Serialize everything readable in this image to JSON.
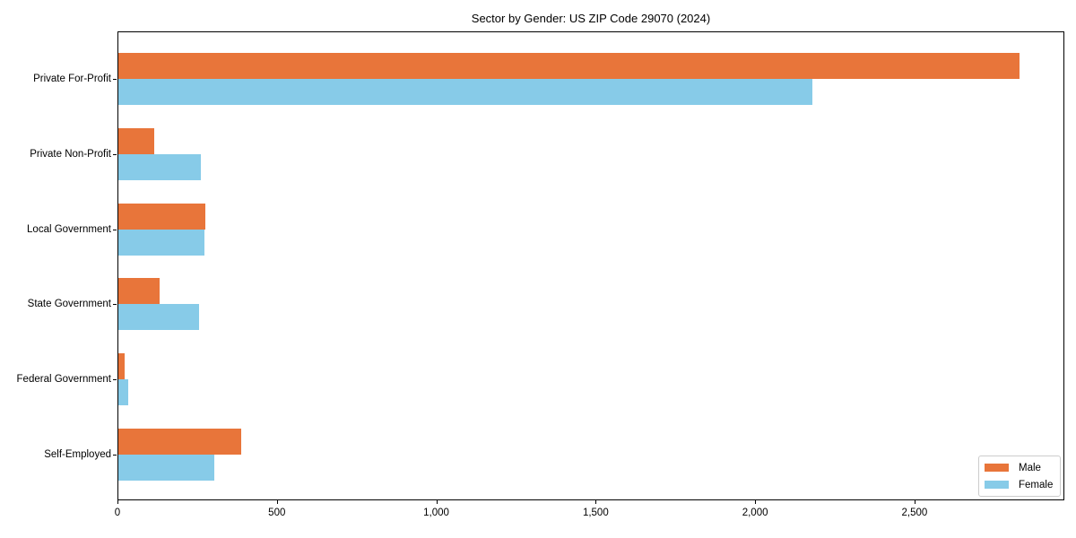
{
  "chart_data": {
    "type": "bar",
    "orientation": "horizontal",
    "title": "Sector by Gender: US ZIP Code 29070 (2024)",
    "categories": [
      "Private For-Profit",
      "Private Non-Profit",
      "Local Government",
      "State Government",
      "Federal Government",
      "Self-Employed"
    ],
    "series": [
      {
        "name": "Male",
        "color": "#e8753a",
        "values": [
          2826,
          113,
          273,
          130,
          20,
          385
        ]
      },
      {
        "name": "Female",
        "color": "#87cbe8",
        "values": [
          2176,
          258,
          271,
          253,
          32,
          300
        ]
      }
    ],
    "xlim": [
      0,
      2970
    ],
    "xticks": [
      0,
      500,
      1000,
      1500,
      2000,
      2500
    ],
    "xtick_labels": [
      "0",
      "500",
      "1,000",
      "1,500",
      "2,000",
      "2,500"
    ],
    "xlabel": "",
    "ylabel": "",
    "grid": false,
    "legend_position": "lower right",
    "spine_color": "#000000",
    "background_color": "#ffffff",
    "legend_border_color": "#cccccc"
  }
}
